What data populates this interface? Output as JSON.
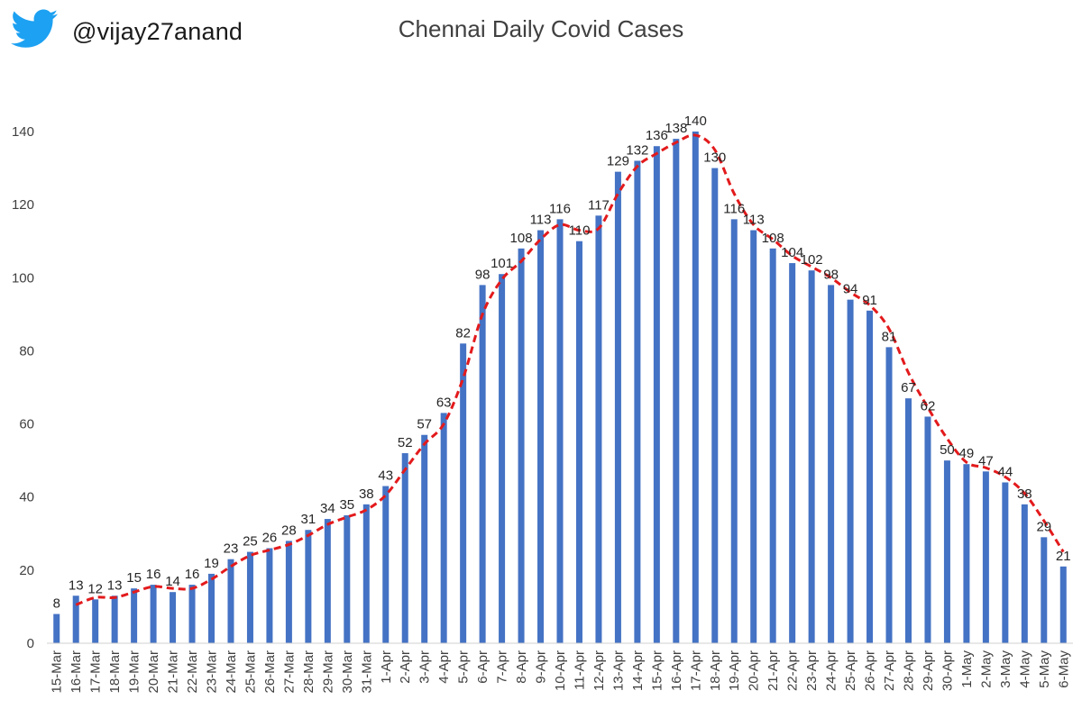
{
  "header": {
    "handle": "@vijay27anand",
    "logo_icon": "twitter-bird-icon",
    "logo_color": "#1DA1F2"
  },
  "chart_data": {
    "type": "bar",
    "title": "Chennai Daily Covid Cases",
    "xlabel": "",
    "ylabel": "",
    "ylim": [
      0,
      140
    ],
    "yticks": [
      0,
      20,
      40,
      60,
      80,
      100,
      120,
      140
    ],
    "grid": false,
    "categories": [
      "15-Mar",
      "16-Mar",
      "17-Mar",
      "18-Mar",
      "19-Mar",
      "20-Mar",
      "21-Mar",
      "22-Mar",
      "23-Mar",
      "24-Mar",
      "25-Mar",
      "26-Mar",
      "27-Mar",
      "28-Mar",
      "29-Mar",
      "30-Mar",
      "31-Mar",
      "1-Apr",
      "2-Apr",
      "3-Apr",
      "4-Apr",
      "5-Apr",
      "6-Apr",
      "7-Apr",
      "8-Apr",
      "9-Apr",
      "10-Apr",
      "11-Apr",
      "12-Apr",
      "13-Apr",
      "14-Apr",
      "15-Apr",
      "16-Apr",
      "17-Apr",
      "18-Apr",
      "19-Apr",
      "20-Apr",
      "21-Apr",
      "22-Apr",
      "23-Apr",
      "24-Apr",
      "25-Apr",
      "26-Apr",
      "27-Apr",
      "28-Apr",
      "29-Apr",
      "30-Apr",
      "1-May",
      "2-May",
      "3-May",
      "4-May",
      "5-May",
      "6-May"
    ],
    "values": [
      8,
      13,
      12,
      13,
      15,
      16,
      14,
      16,
      19,
      23,
      25,
      26,
      28,
      31,
      34,
      35,
      38,
      43,
      52,
      57,
      63,
      82,
      98,
      101,
      108,
      113,
      116,
      110,
      117,
      129,
      132,
      136,
      138,
      140,
      130,
      116,
      113,
      108,
      104,
      102,
      98,
      94,
      91,
      81,
      67,
      62,
      50,
      49,
      47,
      44,
      38,
      29,
      21
    ],
    "series": [
      {
        "type": "bar",
        "color": "#4472C4",
        "data_labels": true
      },
      {
        "type": "line",
        "style": "dashed",
        "color": "#E31A1C",
        "note": "2-period moving average"
      }
    ]
  }
}
